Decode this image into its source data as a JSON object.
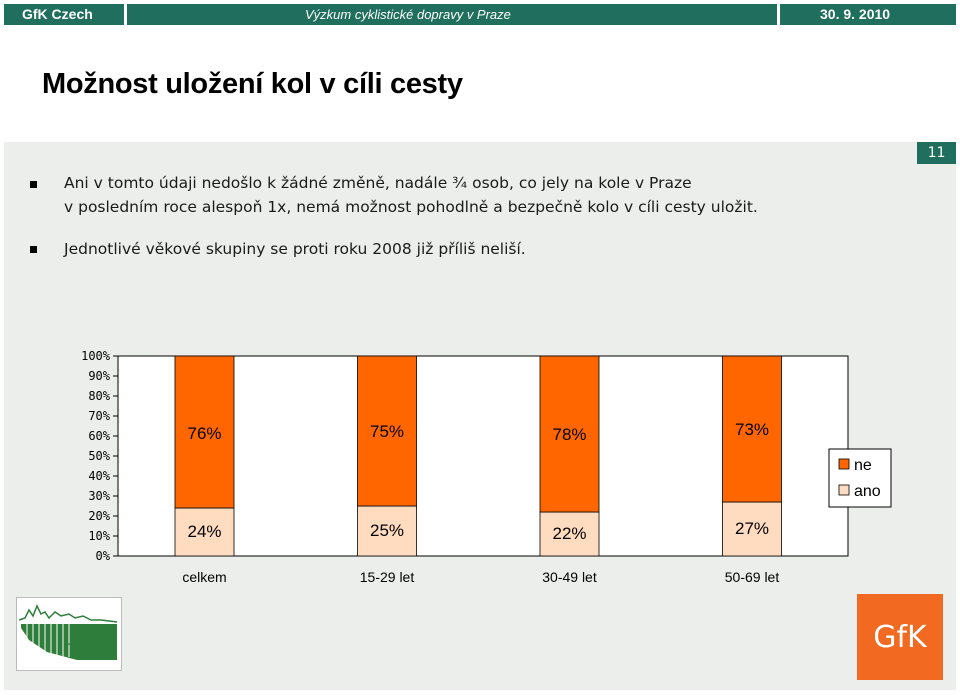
{
  "header": {
    "brand": "GfK Czech",
    "subtitle": "Výzkum cyklistické dopravy v Praze",
    "date": "30. 9. 2010"
  },
  "page": {
    "title": "Možnost uložení kol v cíli cesty",
    "number": "11"
  },
  "bullets": [
    {
      "line1": "Ani v tomto údaji nedošlo k žádné změně, nadále ¾ osob, co jely na kole v Praze",
      "line2": "v posledním roce alespoň 1x, nemá možnost pohodlně a bezpečně kolo v cíli cesty uložit."
    },
    {
      "line1": "Jednotlivé věkové skupiny se proti roku 2008 již příliš neliší."
    }
  ],
  "logos": {
    "tsk": "TSK",
    "gfk": "GfK"
  },
  "colors": {
    "brand_green": "#1f6e5e",
    "ne": "#ff6600",
    "ano": "#ffdcc0"
  },
  "chart_data": {
    "type": "bar",
    "stacked": true,
    "percent": true,
    "categories": [
      "celkem",
      "15-29 let",
      "30-49 let",
      "50-69 let"
    ],
    "series": [
      {
        "name": "ano",
        "values": [
          24,
          25,
          22,
          27
        ],
        "labels": [
          "24%",
          "25%",
          "22%",
          "27%"
        ],
        "color": "#ffdcc0"
      },
      {
        "name": "ne",
        "values": [
          76,
          75,
          78,
          73
        ],
        "labels": [
          "76%",
          "75%",
          "78%",
          "73%"
        ],
        "color": "#ff6600"
      }
    ],
    "ylim": [
      0,
      100
    ],
    "yticks": [
      "0%",
      "10%",
      "20%",
      "30%",
      "40%",
      "50%",
      "60%",
      "70%",
      "80%",
      "90%",
      "100%"
    ],
    "legend": {
      "position": "right",
      "entries": [
        "ne",
        "ano"
      ]
    },
    "grid": false
  }
}
